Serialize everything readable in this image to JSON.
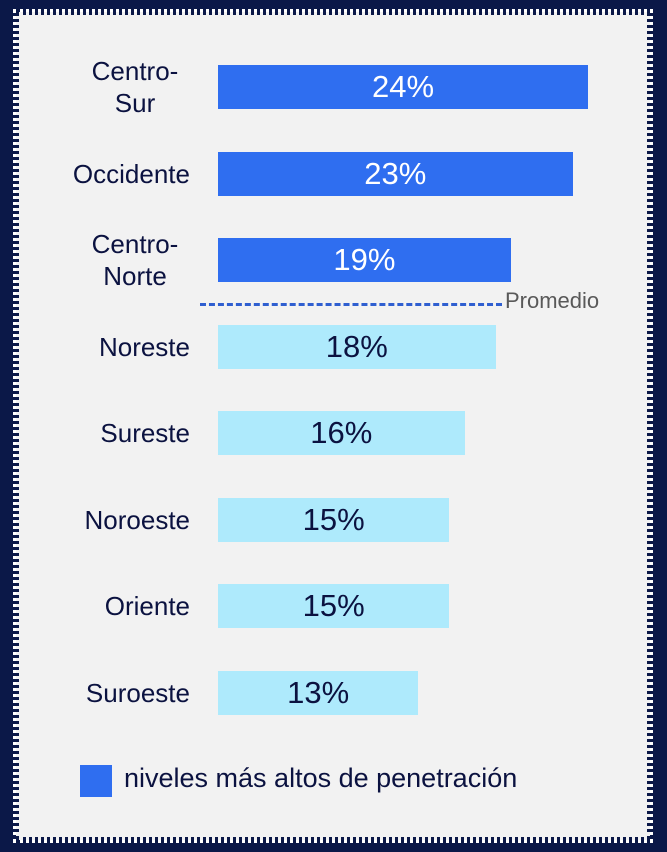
{
  "chart_data": {
    "type": "bar",
    "orientation": "horizontal",
    "categories": [
      "Centro-\nSur",
      "Occidente",
      "Centro-\nNorte",
      "Noreste",
      "Sureste",
      "Noroeste",
      "Oriente",
      "Suroeste"
    ],
    "values": [
      24,
      23,
      19,
      18,
      16,
      15,
      15,
      13
    ],
    "value_labels": [
      "24%",
      "23%",
      "19%",
      "18%",
      "16%",
      "15%",
      "15%",
      "13%"
    ],
    "colors": [
      "#2f6ef0",
      "#2f6ef0",
      "#2f6ef0",
      "#aeeafc",
      "#aeeafc",
      "#aeeafc",
      "#aeeafc",
      "#aeeafc"
    ],
    "reference_line": {
      "label": "Promedio",
      "color": "#2f5fd0"
    },
    "legend": [
      {
        "name": "niveles más altos de penetración",
        "color": "#2f6ef0"
      }
    ]
  }
}
